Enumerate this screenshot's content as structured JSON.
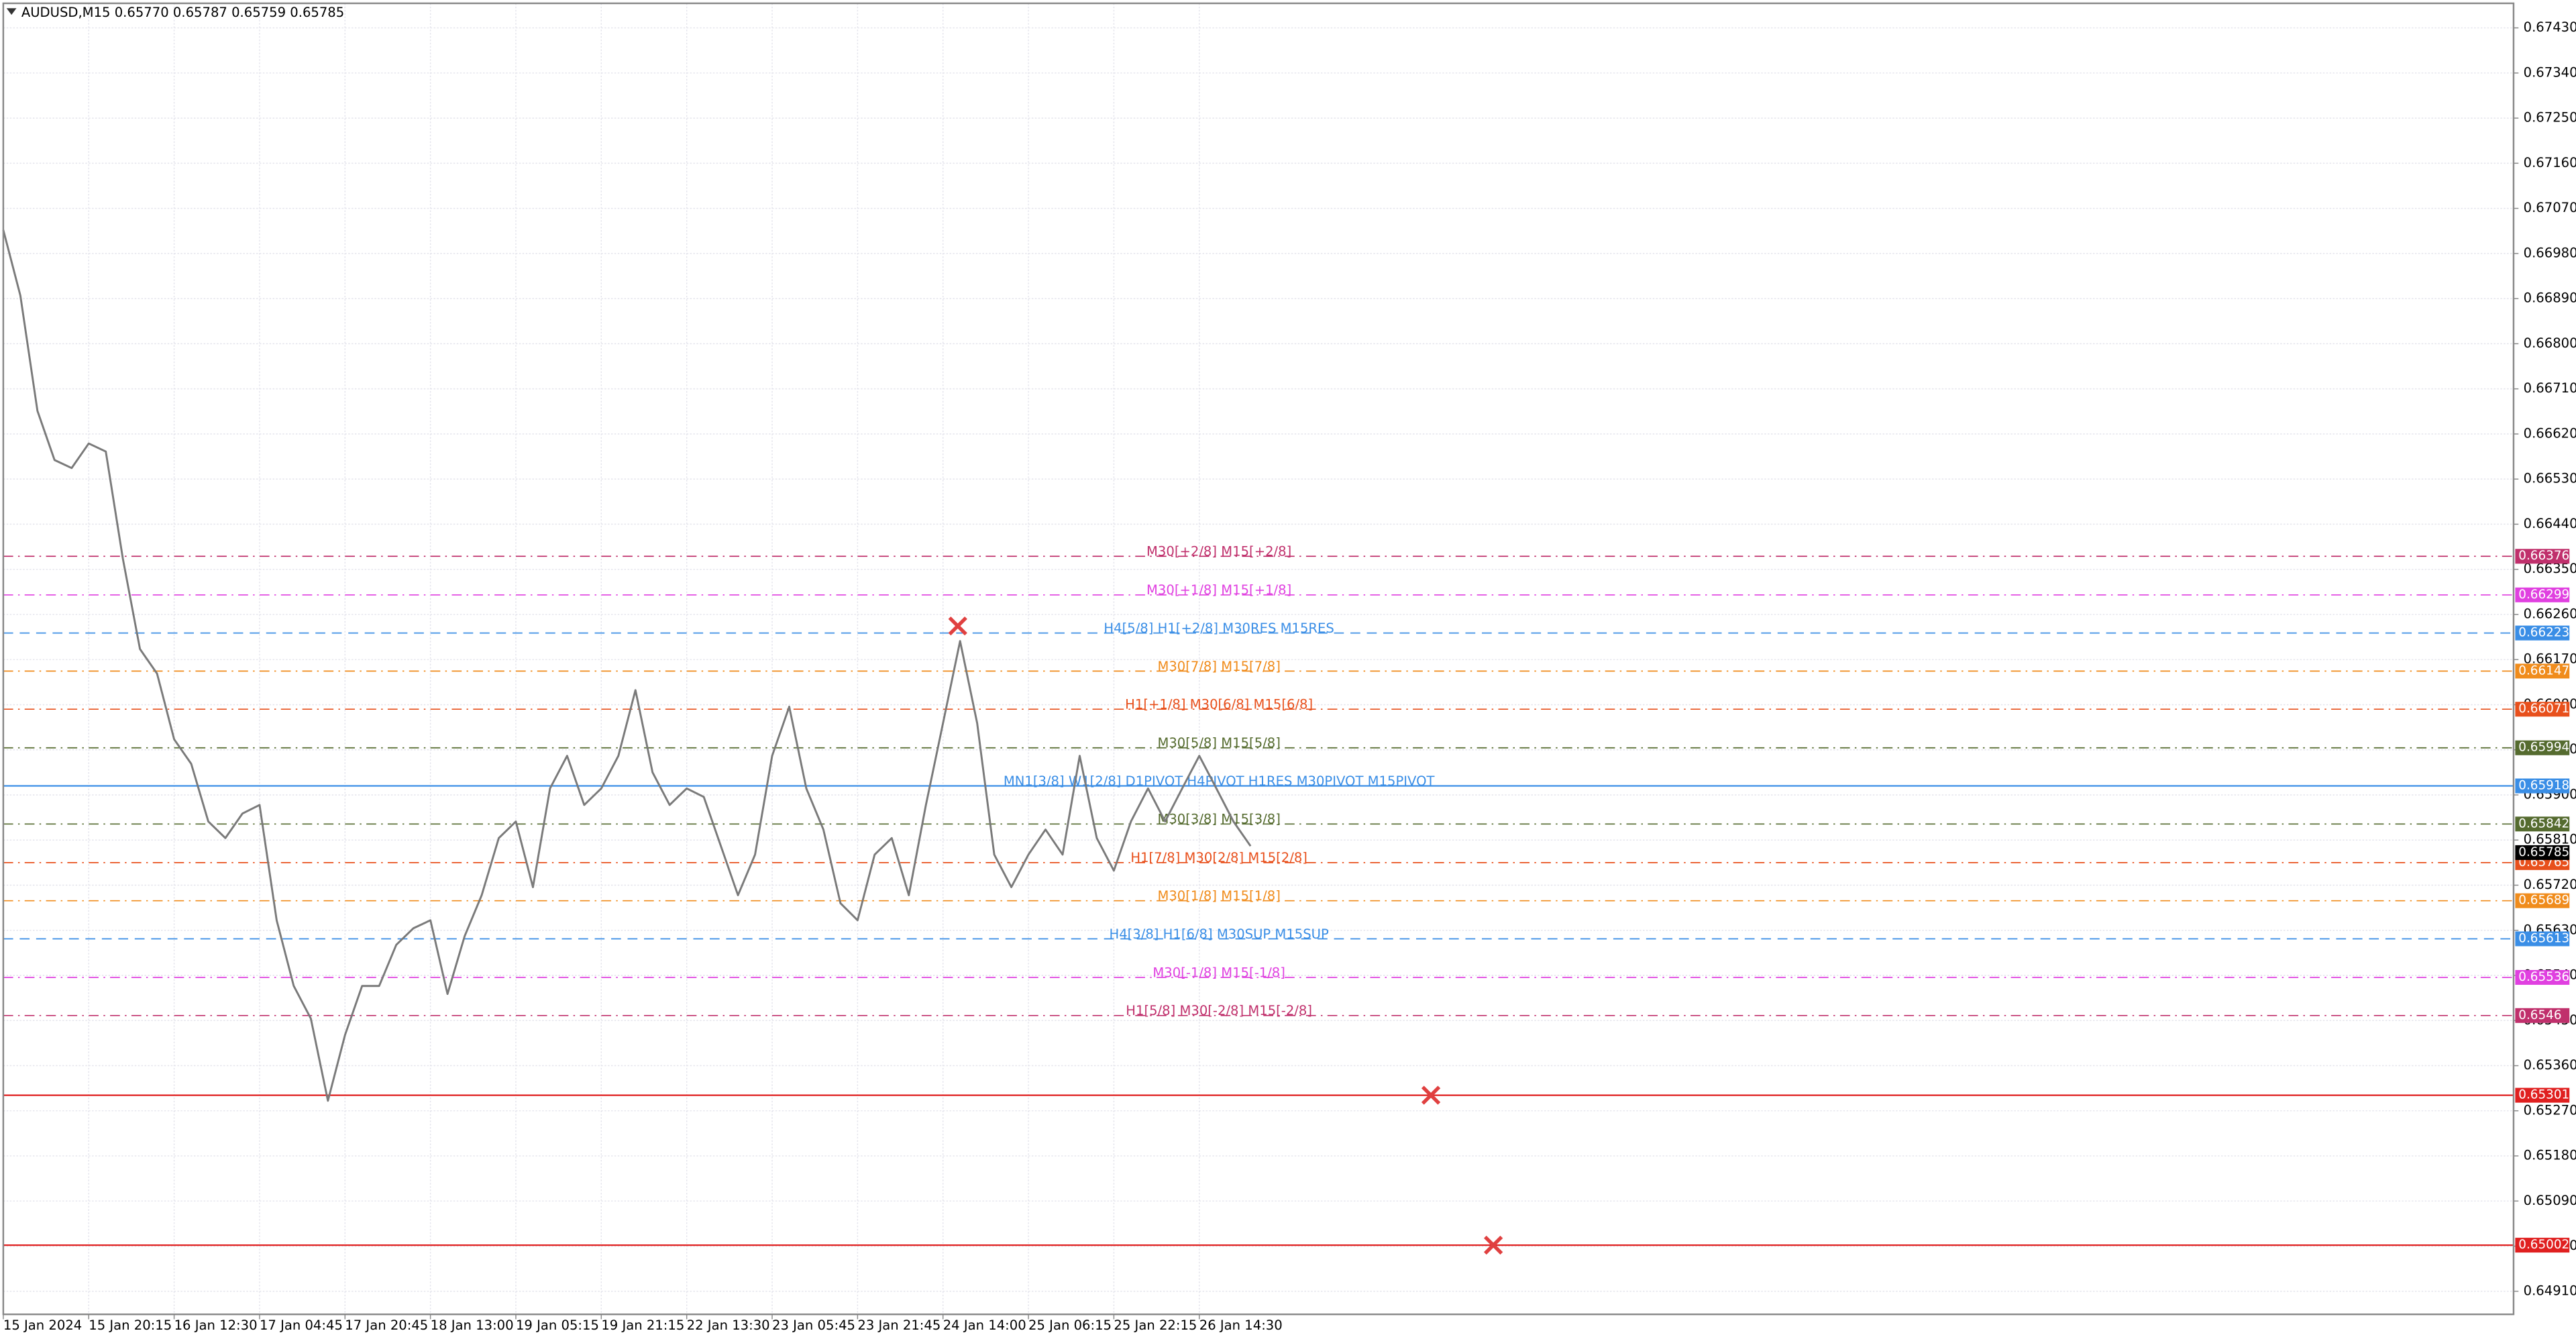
{
  "chart_data": {
    "type": "line",
    "title": "AUDUSD,M15  0.65770 0.65787 0.65759 0.65785",
    "color": "#7a7a7a",
    "grid": true,
    "categories": [
      "15 Jan 2024",
      null,
      null,
      null,
      null,
      "15 Jan 20:15",
      null,
      null,
      null,
      null,
      "16 Jan 12:30",
      null,
      null,
      null,
      null,
      "17 Jan 04:45",
      null,
      null,
      null,
      null,
      "17 Jan 20:45",
      null,
      null,
      null,
      null,
      "18 Jan 13:00",
      null,
      null,
      null,
      null,
      "19 Jan 05:15",
      null,
      null,
      null,
      null,
      "19 Jan 21:15",
      null,
      null,
      null,
      null,
      "22 Jan 13:30",
      null,
      null,
      null,
      null,
      "23 Jan 05:45",
      null,
      null,
      null,
      null,
      "23 Jan 21:45",
      null,
      null,
      null,
      null,
      "24 Jan 14:00",
      null,
      null,
      null,
      null,
      "25 Jan 06:15",
      null,
      null,
      null,
      null,
      "25 Jan 22:15",
      null,
      null,
      null,
      null,
      "26 Jan 14:30",
      null,
      null,
      null
    ],
    "values": [
      0.67027,
      0.66896,
      0.66666,
      0.66568,
      0.66552,
      0.66601,
      0.66585,
      0.66371,
      0.66191,
      0.66142,
      0.66011,
      0.65962,
      0.65847,
      0.65814,
      0.65863,
      0.6588,
      0.6565,
      0.65519,
      0.65454,
      0.6529,
      0.65421,
      0.65519,
      0.65519,
      0.65601,
      0.65634,
      0.6565,
      0.65503,
      0.65618,
      0.657,
      0.65814,
      0.65847,
      0.65716,
      0.65913,
      0.65978,
      0.6588,
      0.65913,
      0.65978,
      0.66109,
      0.65945,
      0.6588,
      0.65913,
      0.65896,
      0.65798,
      0.657,
      0.65781,
      0.65978,
      0.66076,
      0.65913,
      0.65831,
      0.65684,
      0.6565,
      0.65781,
      0.65814,
      0.657,
      0.6588,
      0.66043,
      0.66207,
      0.66043,
      0.65781,
      0.65716,
      0.65781,
      0.65831,
      0.65781,
      0.65978,
      0.65814,
      0.65749,
      0.65847,
      0.65913,
      0.65847,
      0.65913,
      0.65978,
      0.65913,
      0.65847,
      0.65798
    ],
    "ylim": [
      0.64864,
      0.67479
    ],
    "yticks": [
      {
        "value": 0.6743,
        "label": "0.67430"
      },
      {
        "value": 0.6734,
        "label": "0.67340"
      },
      {
        "value": 0.6725,
        "label": "0.67250"
      },
      {
        "value": 0.6716,
        "label": "0.67160"
      },
      {
        "value": 0.6707,
        "label": "0.67070"
      },
      {
        "value": 0.6698,
        "label": "0.66980"
      },
      {
        "value": 0.6689,
        "label": "0.66890"
      },
      {
        "value": 0.668,
        "label": "0.66800"
      },
      {
        "value": 0.6671,
        "label": "0.66710"
      },
      {
        "value": 0.6662,
        "label": "0.66620"
      },
      {
        "value": 0.6653,
        "label": "0.66530"
      },
      {
        "value": 0.6644,
        "label": "0.66440"
      },
      {
        "value": 0.6635,
        "label": "0.66350"
      },
      {
        "value": 0.6626,
        "label": "0.66260"
      },
      {
        "value": 0.6617,
        "label": "0.66170"
      },
      {
        "value": 0.6608,
        "label": "0.66080"
      },
      {
        "value": 0.6599,
        "label": "0.65990"
      },
      {
        "value": 0.659,
        "label": "0.65900"
      },
      {
        "value": 0.6581,
        "label": "0.65810"
      },
      {
        "value": 0.6572,
        "label": "0.65720"
      },
      {
        "value": 0.6563,
        "label": "0.65630"
      },
      {
        "value": 0.6554,
        "label": "0.65540"
      },
      {
        "value": 0.6545,
        "label": "0.65450"
      },
      {
        "value": 0.6536,
        "label": "0.65360"
      },
      {
        "value": 0.6527,
        "label": "0.65270"
      },
      {
        "value": 0.6518,
        "label": "0.65180"
      },
      {
        "value": 0.6509,
        "label": "0.65090"
      },
      {
        "value": 0.65,
        "label": "0.65000"
      },
      {
        "value": 0.6491,
        "label": "0.64910"
      }
    ],
    "levels": [
      {
        "value": 0.66376,
        "label": "M30[+2/8] M15[+2/8]",
        "color": "#c0306c",
        "style": "dashdot"
      },
      {
        "value": 0.66299,
        "label": "M30[+1/8] M15[+1/8]",
        "color": "#e040e0",
        "style": "dashdot"
      },
      {
        "value": 0.66223,
        "label": "H4[5/8] H1[+2/8] M30RES M15RES",
        "color": "#3a8ee6",
        "style": "dash"
      },
      {
        "value": 0.66147,
        "label": "M30[7/8] M15[7/8]",
        "color": "#f08c1c",
        "style": "dashdot"
      },
      {
        "value": 0.66071,
        "label": "H1[+1/8] M30[6/8] M15[6/8]",
        "color": "#e8501c",
        "style": "dashdot"
      },
      {
        "value": 0.65994,
        "label": "M30[5/8] M15[5/8]",
        "color": "#556b2f",
        "style": "dashdot"
      },
      {
        "value": 0.65918,
        "label": "MN1[3/8] W1[2/8] D1PIVOT H4PIVOT H1RES M30PIVOT M15PIVOT",
        "color": "#3a8ee6",
        "style": "solid"
      },
      {
        "value": 0.65842,
        "label": "M30[3/8] M15[3/8]",
        "color": "#556b2f",
        "style": "dashdot"
      },
      {
        "value": 0.65765,
        "label": "H1[7/8] M30[2/8] M15[2/8]",
        "color": "#e8501c",
        "style": "dashdot"
      },
      {
        "value": 0.65689,
        "label": "M30[1/8] M15[1/8]",
        "color": "#f08c1c",
        "style": "dashdot"
      },
      {
        "value": 0.65613,
        "label": "H4[3/8] H1[6/8] M30SUP M15SUP",
        "color": "#3a8ee6",
        "style": "dash"
      },
      {
        "value": 0.65536,
        "label": "M30[-1/8] M15[-1/8]",
        "color": "#e040e0",
        "style": "dashdot"
      },
      {
        "value": 0.6546,
        "label": "H1[5/8] M30[-2/8] M15[-2/8]",
        "color": "#c0306c",
        "style": "dashdot"
      },
      {
        "value": 0.65301,
        "color": "#e02020",
        "style": "solid"
      },
      {
        "value": 0.65002,
        "color": "#e02020",
        "style": "solid"
      }
    ],
    "current_price": 0.65785,
    "markers": [
      0.66237,
      0.65301,
      0.65002
    ],
    "marker_color": "#e04040"
  }
}
